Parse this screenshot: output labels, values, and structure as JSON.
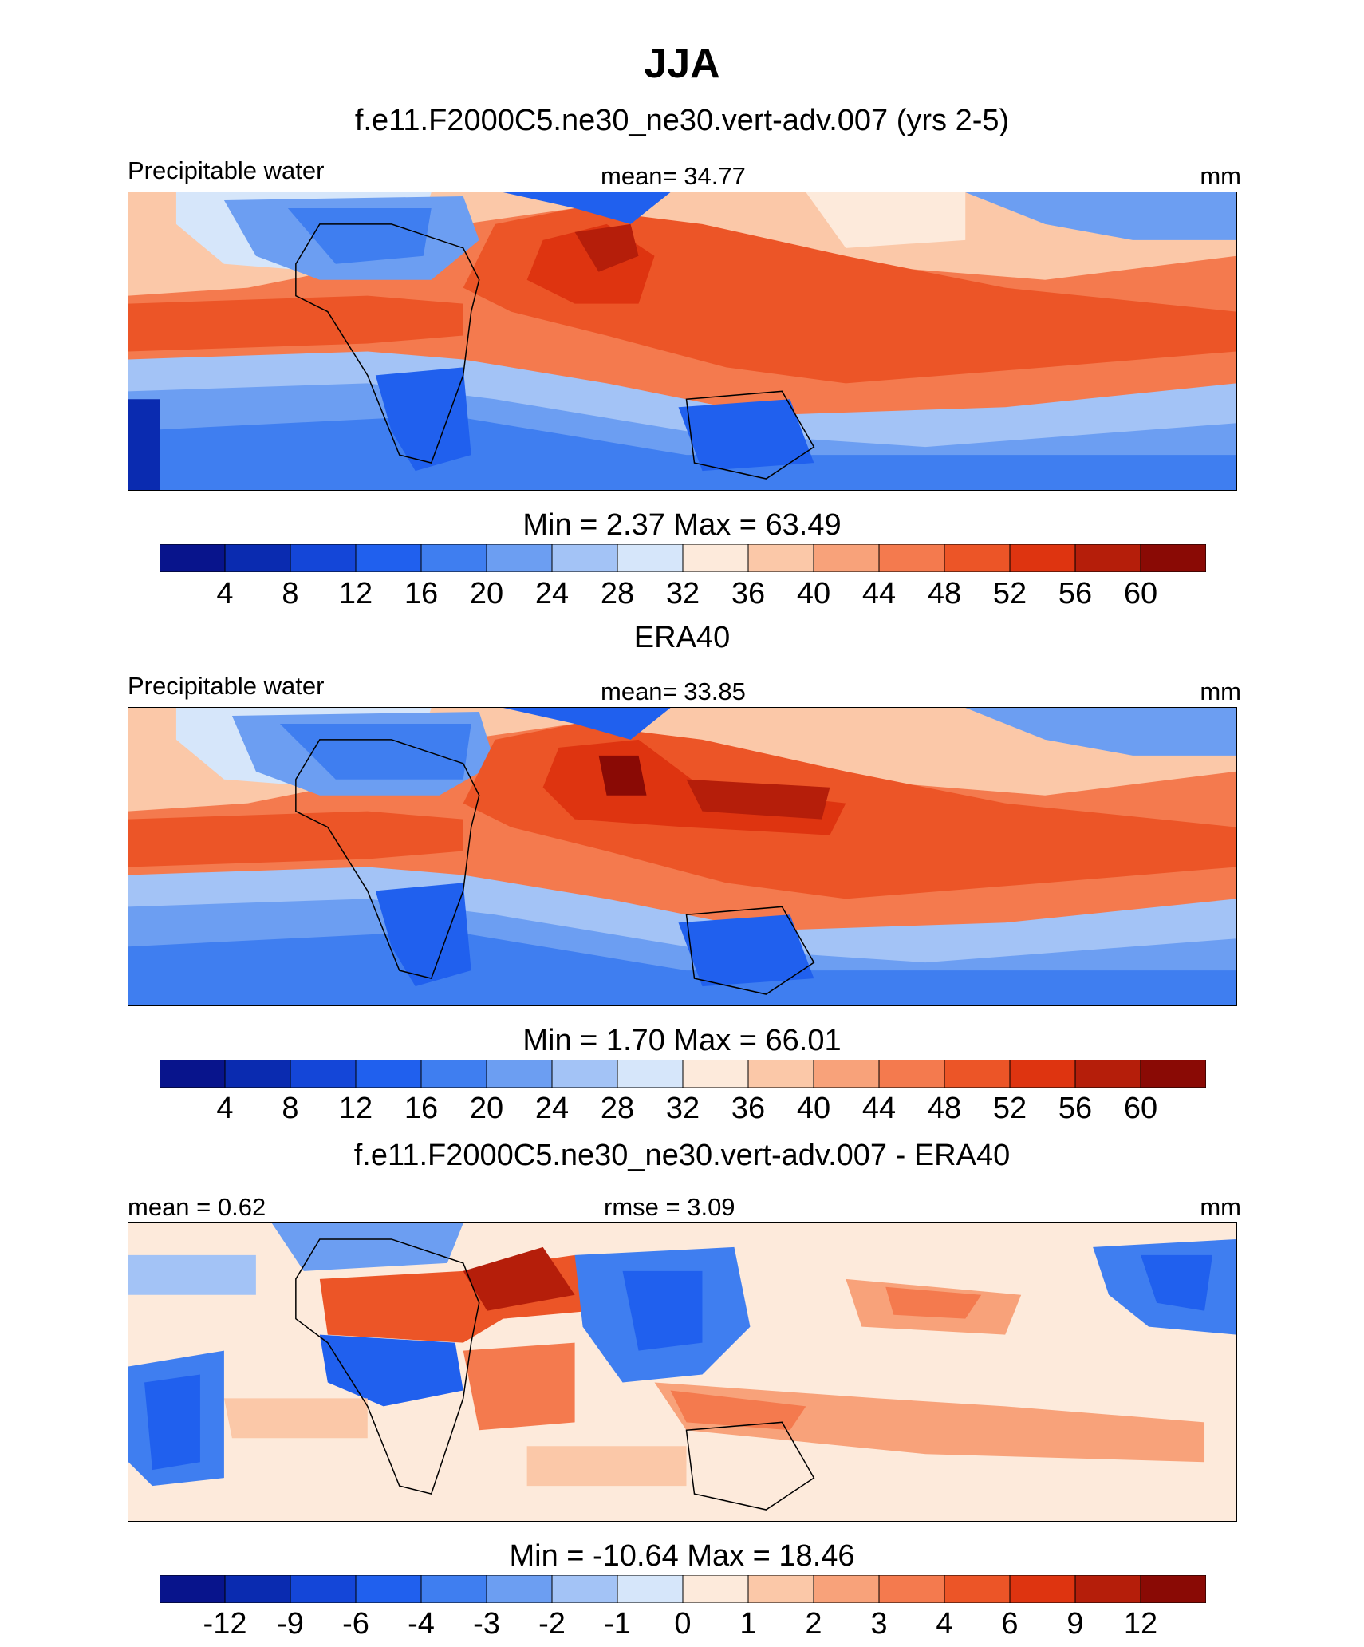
{
  "figure": {
    "title": "JJA",
    "units": "mm"
  },
  "palette": [
    "#08148c",
    "#0a2bb0",
    "#1446d8",
    "#2060ee",
    "#3f7ef0",
    "#6c9ef2",
    "#a3c3f6",
    "#d6e6fa",
    "#fdeadb",
    "#fbc8a8",
    "#f8a27a",
    "#f47a4e",
    "#ec5527",
    "#de3410",
    "#b51e0a",
    "#8a0a05"
  ],
  "chart_data": [
    {
      "type": "heatmap",
      "panel": "model",
      "title": "f.e11.F2000C5.ne30_ne30.vert-adv.007 (yrs 2-5)",
      "variable": "Precipitable water",
      "mean_label": "mean=  34.77",
      "mean": 34.77,
      "units": "mm",
      "min": 2.37,
      "max": 63.49,
      "minmax_label": "Min =    2.37 Max =  63.49",
      "contour_levels": [
        4,
        8,
        12,
        16,
        20,
        24,
        28,
        32,
        36,
        40,
        44,
        48,
        52,
        56,
        60
      ],
      "tick_labels": [
        "4",
        "8",
        "12",
        "16",
        "20",
        "24",
        "28",
        "32",
        "36",
        "40",
        "44",
        "48",
        "52",
        "56",
        "60"
      ]
    },
    {
      "type": "heatmap",
      "panel": "observation",
      "title": "ERA40",
      "variable": "Precipitable water",
      "mean_label": "mean=  33.85",
      "mean": 33.85,
      "units": "mm",
      "min": 1.7,
      "max": 66.01,
      "minmax_label": "Min =    1.70 Max =  66.01",
      "contour_levels": [
        4,
        8,
        12,
        16,
        20,
        24,
        28,
        32,
        36,
        40,
        44,
        48,
        52,
        56,
        60
      ],
      "tick_labels": [
        "4",
        "8",
        "12",
        "16",
        "20",
        "24",
        "28",
        "32",
        "36",
        "40",
        "44",
        "48",
        "52",
        "56",
        "60"
      ]
    },
    {
      "type": "heatmap",
      "panel": "difference",
      "title": "f.e11.F2000C5.ne30_ne30.vert-adv.007 - ERA40",
      "mean_label": "mean =    0.62",
      "mean": 0.62,
      "rmse_label": "rmse =    3.09",
      "rmse": 3.09,
      "units": "mm",
      "min": -10.64,
      "max": 18.46,
      "minmax_label": "Min = -10.64 Max =  18.46",
      "contour_levels": [
        -12,
        -9,
        -6,
        -4,
        -3,
        -2,
        -1,
        0,
        1,
        2,
        3,
        4,
        6,
        9,
        12
      ],
      "tick_labels": [
        "-12",
        "-9",
        "-6",
        "-4",
        "-3",
        "-2",
        "-1",
        "0",
        "1",
        "2",
        "3",
        "4",
        "6",
        "9",
        "12"
      ]
    }
  ]
}
